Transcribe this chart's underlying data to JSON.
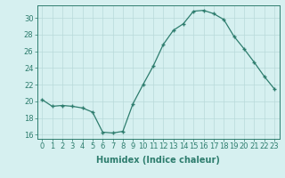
{
  "x": [
    0,
    1,
    2,
    3,
    4,
    5,
    6,
    7,
    8,
    9,
    10,
    11,
    12,
    13,
    14,
    15,
    16,
    17,
    18,
    19,
    20,
    21,
    22,
    23
  ],
  "y": [
    20.2,
    19.4,
    19.5,
    19.4,
    19.2,
    18.7,
    16.3,
    16.2,
    16.4,
    19.7,
    22.0,
    24.2,
    26.8,
    28.5,
    29.3,
    30.8,
    30.9,
    30.5,
    29.8,
    27.8,
    26.3,
    24.7,
    23.0,
    21.5
  ],
  "xlabel": "Humidex (Indice chaleur)",
  "ylim": [
    15.5,
    31.5
  ],
  "xlim": [
    -0.5,
    23.5
  ],
  "yticks": [
    16,
    18,
    20,
    22,
    24,
    26,
    28,
    30
  ],
  "xticks": [
    0,
    1,
    2,
    3,
    4,
    5,
    6,
    7,
    8,
    9,
    10,
    11,
    12,
    13,
    14,
    15,
    16,
    17,
    18,
    19,
    20,
    21,
    22,
    23
  ],
  "line_color": "#2e7d6e",
  "marker_color": "#2e7d6e",
  "bg_color": "#d6f0f0",
  "grid_color": "#b8dada",
  "font_size_ticks": 6.0,
  "font_size_xlabel": 7.0
}
